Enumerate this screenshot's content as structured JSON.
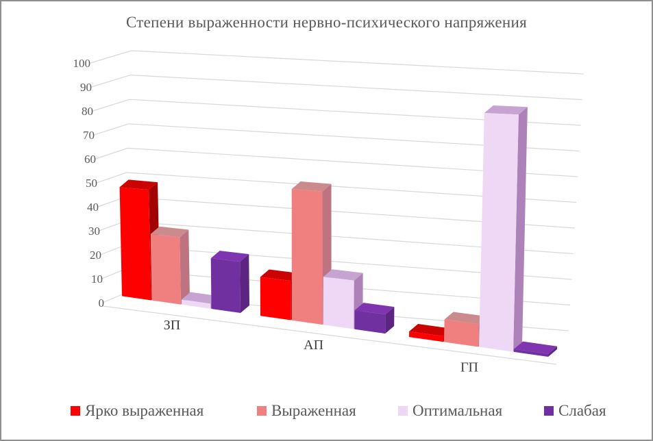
{
  "window": {
    "background": "#ffffff",
    "border_color": "#8f8f8f"
  },
  "chart_data": {
    "type": "bar",
    "subtype": "3d-clustered-column",
    "title": "Степени выраженности нервно-психического напряжения",
    "categories": [
      "ЗП",
      "АП",
      "ГП"
    ],
    "series": [
      {
        "name": "Ярко выраженная",
        "values": [
          45,
          15,
          2
        ],
        "color": "#fe0000",
        "top_color": "#cb0303",
        "side_color": "#a30202"
      },
      {
        "name": "Выраженная",
        "values": [
          27,
          50,
          8
        ],
        "color": "#f08080",
        "top_color": "#cb8b8d",
        "side_color": "#bd7480"
      },
      {
        "name": "Оптимальная",
        "values": [
          2,
          18,
          82
        ],
        "color": "#efd8f5",
        "top_color": "#c7a3d2",
        "side_color": "#ad82b9"
      },
      {
        "name": "Слабая",
        "values": [
          20,
          7,
          1
        ],
        "color": "#7030a0",
        "top_color": "#7f35b0",
        "side_color": "#5b2581"
      }
    ],
    "xlabel": "",
    "ylabel": "",
    "y_axis": {
      "min": 0,
      "max": 100,
      "step": 10,
      "ticks": [
        0,
        10,
        20,
        30,
        40,
        50,
        60,
        70,
        80,
        90,
        100
      ]
    },
    "grid": true,
    "gridline_color": "#d8d8d8",
    "legend_position": "bottom",
    "text_colors": {
      "title": "#595959",
      "axis": "#595959",
      "category": "#3f3f3f"
    }
  }
}
